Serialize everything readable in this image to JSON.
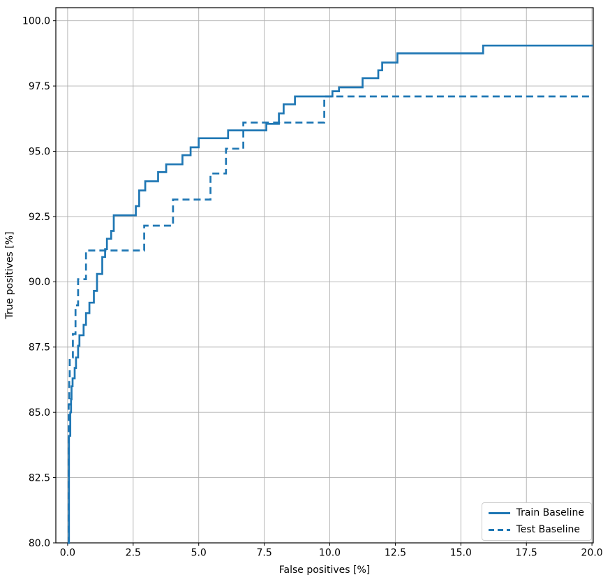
{
  "legend": {
    "items": [
      {
        "label": "Train Baseline",
        "style": "solid"
      },
      {
        "label": "Test Baseline",
        "style": "dashed"
      }
    ]
  },
  "chart_data": {
    "type": "line",
    "subtype": "step",
    "title": "",
    "xlabel": "False positives [%]",
    "ylabel": "True positives [%]",
    "xlim": [
      -0.45,
      20.05
    ],
    "ylim": [
      80.0,
      100.5
    ],
    "x_ticks": [
      0.0,
      2.5,
      5.0,
      7.5,
      10.0,
      12.5,
      15.0,
      17.5,
      20.0
    ],
    "x_tick_labels": [
      "0.0",
      "2.5",
      "5.0",
      "7.5",
      "10.0",
      "12.5",
      "15.0",
      "17.5",
      "20.0"
    ],
    "y_ticks": [
      80.0,
      82.5,
      85.0,
      87.5,
      90.0,
      92.5,
      95.0,
      97.5,
      100.0
    ],
    "y_tick_labels": [
      "80.0",
      "82.5",
      "85.0",
      "87.5",
      "90.0",
      "92.5",
      "95.0",
      "97.5",
      "100.0"
    ],
    "grid": true,
    "grid_color": "#b0b0b0",
    "legend_position": "lower right",
    "line_color": "#1f77b4",
    "series": [
      {
        "name": "Train Baseline",
        "style": "solid",
        "points": [
          [
            0.0,
            80.0
          ],
          [
            0.05,
            84.1
          ],
          [
            0.1,
            85.0
          ],
          [
            0.13,
            85.5
          ],
          [
            0.15,
            86.0
          ],
          [
            0.19,
            86.3
          ],
          [
            0.27,
            86.7
          ],
          [
            0.32,
            87.1
          ],
          [
            0.4,
            87.55
          ],
          [
            0.45,
            87.95
          ],
          [
            0.61,
            88.35
          ],
          [
            0.7,
            88.8
          ],
          [
            0.83,
            89.2
          ],
          [
            1.0,
            89.65
          ],
          [
            1.12,
            90.3
          ],
          [
            1.32,
            90.95
          ],
          [
            1.43,
            91.25
          ],
          [
            1.5,
            91.65
          ],
          [
            1.66,
            91.95
          ],
          [
            1.76,
            92.55
          ],
          [
            2.6,
            92.9
          ],
          [
            2.73,
            93.5
          ],
          [
            2.96,
            93.85
          ],
          [
            3.45,
            94.2
          ],
          [
            3.76,
            94.5
          ],
          [
            4.38,
            94.85
          ],
          [
            4.69,
            95.15
          ],
          [
            5.0,
            95.5
          ],
          [
            6.12,
            95.8
          ],
          [
            7.58,
            96.05
          ],
          [
            8.06,
            96.45
          ],
          [
            8.24,
            96.8
          ],
          [
            8.67,
            97.1
          ],
          [
            10.1,
            97.3
          ],
          [
            10.35,
            97.45
          ],
          [
            11.25,
            97.8
          ],
          [
            11.85,
            98.1
          ],
          [
            12.0,
            98.4
          ],
          [
            12.58,
            98.75
          ],
          [
            15.85,
            99.05
          ],
          [
            20.0,
            99.05
          ]
        ]
      },
      {
        "name": "Test Baseline",
        "style": "dashed",
        "points": [
          [
            0.0,
            80.0
          ],
          [
            0.04,
            85.3
          ],
          [
            0.06,
            86.3
          ],
          [
            0.08,
            87.1
          ],
          [
            0.2,
            88.0
          ],
          [
            0.3,
            89.1
          ],
          [
            0.4,
            90.1
          ],
          [
            0.7,
            91.2
          ],
          [
            2.92,
            92.15
          ],
          [
            4.02,
            93.15
          ],
          [
            5.45,
            94.15
          ],
          [
            6.04,
            95.1
          ],
          [
            6.7,
            96.1
          ],
          [
            9.79,
            97.1
          ],
          [
            20.0,
            97.1
          ]
        ]
      }
    ]
  }
}
